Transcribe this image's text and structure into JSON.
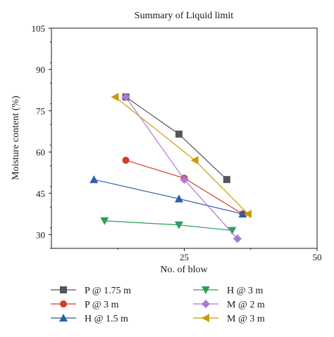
{
  "chart_data": {
    "type": "line",
    "title": "Summary of Liquid limit",
    "xlabel": "No. of blow",
    "ylabel": "Moisture content (%)",
    "xlim": [
      0,
      50
    ],
    "ylim": [
      25,
      105
    ],
    "xticks": [
      25,
      50
    ],
    "yticks": [
      30,
      45,
      60,
      75,
      90,
      105
    ],
    "grid": false,
    "legend_position": "bottom",
    "series": [
      {
        "name": "P @ 1.75 m",
        "marker": "square",
        "color": "#555555",
        "x": [
          14,
          24,
          33
        ],
        "y": [
          80,
          66.5,
          50
        ]
      },
      {
        "name": "P @ 3 m",
        "marker": "circle",
        "color": "#d63a2b",
        "x": [
          14,
          25,
          36
        ],
        "y": [
          57,
          50.5,
          37.5
        ]
      },
      {
        "name": "H @ 1.5 m",
        "marker": "triangle-up",
        "color": "#2f5ea8",
        "x": [
          8,
          24,
          36
        ],
        "y": [
          50,
          43,
          37.5
        ]
      },
      {
        "name": "H @ 3 m",
        "marker": "triangle-down",
        "color": "#2aa05a",
        "x": [
          10,
          24,
          34
        ],
        "y": [
          35,
          33.5,
          31.5
        ]
      },
      {
        "name": "M @ 2 m",
        "marker": "diamond",
        "color": "#a67bd0",
        "x": [
          14,
          25,
          35
        ],
        "y": [
          80,
          50,
          28.5
        ]
      },
      {
        "name": "M @ 3 m",
        "marker": "triangle-left",
        "color": "#c89a0a",
        "x": [
          12,
          27,
          37
        ],
        "y": [
          80,
          57,
          37.5
        ]
      }
    ]
  }
}
